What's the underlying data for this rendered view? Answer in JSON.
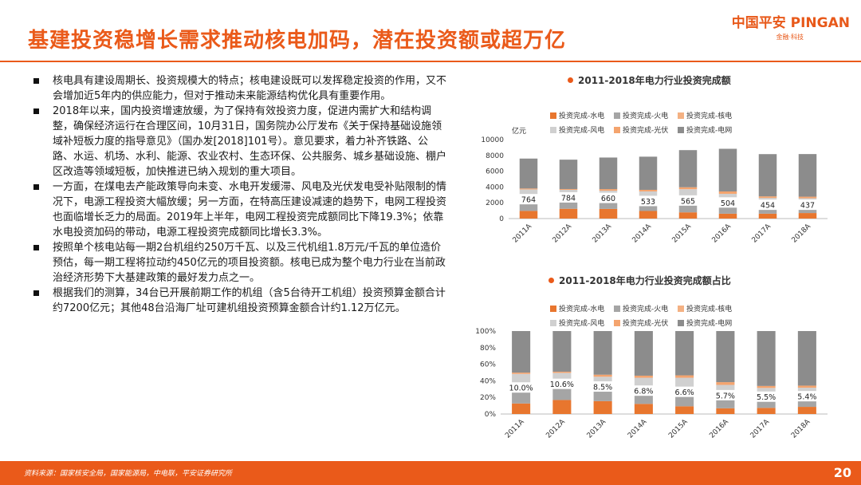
{
  "header": {
    "title": "基建投资稳增长需求推动核电加码，潜在投资额或超万亿",
    "logo_main": "中国平安 PINGAN",
    "logo_sub": "金融·科技"
  },
  "bullets": [
    "核电具有建设周期长、投资规模大的特点；核电建设既可以发挥稳定投资的作用，又不会增加近5年内的供应能力，但对于推动未来能源结构优化具有重要作用。",
    "2018年以来，国内投资增速放缓，为了保持有效投资力度，促进内需扩大和结构调整，确保经济运行在合理区间，10月31日，国务院办公厅发布《关于保持基础设施领域补短板力度的指导意见》（国办发[2018]101号）。意见要求，着力补齐铁路、公路、水运、机场、水利、能源、农业农村、生态环保、公共服务、城乡基础设施、棚户区改造等领域短板，加快推进已纳入规划的重大项目。",
    "一方面，在煤电去产能政策导向未变、水电开发缓滞、风电及光伏发电受补贴限制的情况下，电源工程投资大幅放缓；另一方面，在特高压建设减速的趋势下，电网工程投资也面临增长乏力的局面。2019年上半年，电网工程投资完成额同比下降19.3%；依靠水电投资加码的带动，电源工程投资完成额同比增长3.3%。",
    "按照单个核电站每一期2台机组约250万千瓦、以及三代机组1.8万元/千瓦的单位造价预估，每一期工程将拉动约450亿元的项目投资额。核电已成为整个电力行业在当前政治经济形势下大基建政策的最好发力点之一。",
    "根据我们的测算，34台已开展前期工作的机组（含5台待开工机组）投资预算金额合计约7200亿元；其他48台沿海厂址可建机组投资预算金额合计约1.12万亿元。"
  ],
  "footer": {
    "source": "资料来源：国家核安全局，国家能源局，中电联，平安证券研究所",
    "page": "20"
  },
  "colors": {
    "水电": "#e8762e",
    "火电": "#a5a5a5",
    "核电": "#f4b183",
    "风电": "#d0d0d0",
    "光伏": "#f4a46e",
    "电网": "#8c8c8c"
  },
  "chart_data": [
    {
      "type": "bar",
      "stacked": true,
      "title": "2011-2018年电力行业投资完成额",
      "ylabel": "亿元",
      "ylim": [
        0,
        10000
      ],
      "yticks": [
        "0",
        "2000",
        "4000",
        "6000",
        "8000",
        "10000"
      ],
      "categories": [
        "2011A",
        "2012A",
        "2013A",
        "2014A",
        "2015A",
        "2016A",
        "2017A",
        "2018A"
      ],
      "series": [
        {
          "name": "投资完成-水电",
          "values": [
            971,
            1239,
            1223,
            960,
            789,
            617,
            618,
            700
          ]
        },
        {
          "name": "投资完成-火电",
          "values": [
            1054,
            1002,
            1016,
            952,
            1163,
            1119,
            858,
            786
          ]
        },
        {
          "name": "投资完成-核电",
          "values": [
            764,
            784,
            660,
            533,
            565,
            504,
            454,
            437
          ]
        },
        {
          "name": "投资完成-风电",
          "values": [
            902,
            615,
            631,
            993,
            1200,
            896,
            681,
            646
          ]
        },
        {
          "name": "投资完成-光伏",
          "values": [
            120,
            100,
            200,
            200,
            250,
            300,
            200,
            200
          ]
        },
        {
          "name": "投资完成-电网",
          "values": [
            3787,
            3720,
            4000,
            4200,
            4700,
            5400,
            5350,
            5400
          ]
        }
      ],
      "data_labels_series": "投资完成-核电",
      "data_labels": [
        "764",
        "784",
        "660",
        "533",
        "565",
        "504",
        "454",
        "437"
      ],
      "legend_position": "top"
    },
    {
      "type": "bar",
      "stacked": true,
      "percent": true,
      "title": "2011-2018年电力行业投资完成额占比",
      "ylim": [
        0,
        100
      ],
      "yticks": [
        "0%",
        "20%",
        "40%",
        "60%",
        "80%",
        "100%"
      ],
      "categories": [
        "2011A",
        "2012A",
        "2013A",
        "2014A",
        "2015A",
        "2016A",
        "2017A",
        "2018A"
      ],
      "series": [
        {
          "name": "投资完成-水电",
          "values": [
            12.7,
            16.9,
            15.5,
            12.2,
            9.3,
            6.9,
            7.4,
            8.6
          ]
        },
        {
          "name": "投资完成-火电",
          "values": [
            13.8,
            13.7,
            12.9,
            12.1,
            13.7,
            12.5,
            10.3,
            9.7
          ]
        },
        {
          "name": "投资完成-核电",
          "values": [
            10.0,
            10.6,
            8.5,
            6.8,
            6.6,
            5.7,
            5.5,
            5.4
          ]
        },
        {
          "name": "投资完成-风电",
          "values": [
            11.8,
            8.4,
            8.0,
            12.6,
            14.1,
            10.0,
            8.2,
            8.0
          ]
        },
        {
          "name": "投资完成-光伏",
          "values": [
            1.6,
            1.4,
            2.5,
            2.5,
            2.9,
            3.3,
            2.4,
            2.5
          ]
        },
        {
          "name": "投资完成-电网",
          "values": [
            50.1,
            49.0,
            52.6,
            53.8,
            53.4,
            61.6,
            66.2,
            65.8
          ]
        }
      ],
      "data_labels_series": "投资完成-核电",
      "data_labels": [
        "10.0%",
        "10.6%",
        "8.5%",
        "6.8%",
        "6.6%",
        "5.7%",
        "5.5%",
        "5.4%"
      ],
      "legend_position": "top"
    }
  ]
}
